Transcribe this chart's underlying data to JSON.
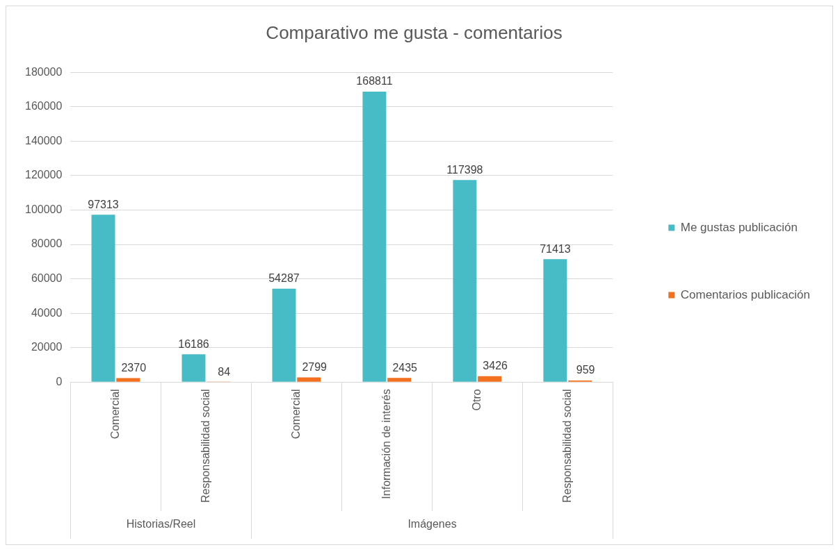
{
  "chart_data": {
    "type": "bar",
    "title": "Comparativo me gusta - comentarios",
    "categories": [
      "Comercial",
      "Responsabilidad social",
      "Comercial",
      "Información de interés",
      "Otro",
      "Responsabilidad social"
    ],
    "series": [
      {
        "name": "Me gustas publicación",
        "color": "#48bcc6",
        "values": [
          97313,
          16186,
          54287,
          168811,
          117398,
          71413
        ]
      },
      {
        "name": "Comentarios publicación",
        "color": "#f47021",
        "values": [
          2370,
          84,
          2799,
          2435,
          3426,
          959
        ]
      }
    ],
    "annotations": [
      "Historias/Reel",
      "Imágenes"
    ],
    "ylim": [
      0,
      180000
    ],
    "yticks": [
      0,
      20000,
      40000,
      60000,
      80000,
      100000,
      120000,
      140000,
      160000,
      180000
    ],
    "grid": "y",
    "legend": "right",
    "data_labels": true
  }
}
